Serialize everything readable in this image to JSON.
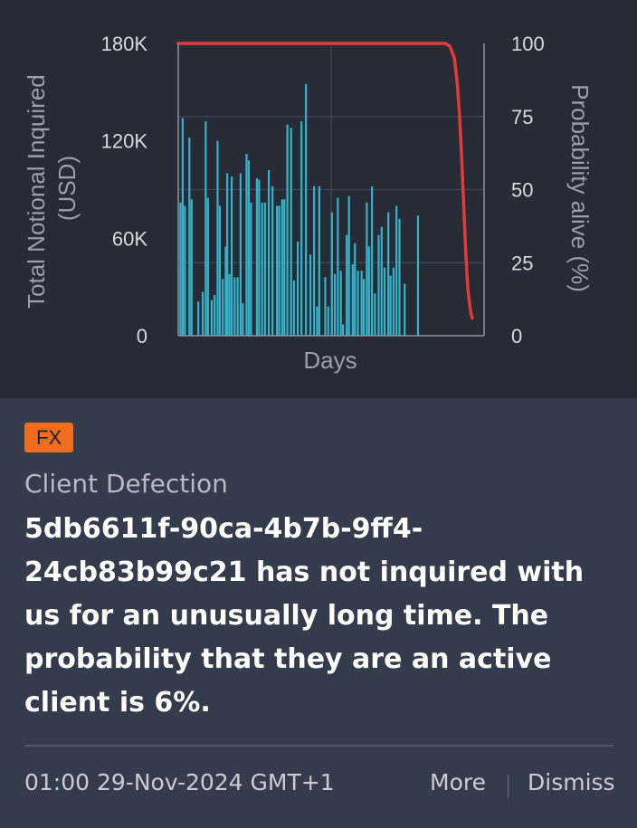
{
  "chart_data": {
    "type": "bar",
    "xlabel": "Days",
    "ylabel_left": "Total Notional Inquired (USD)",
    "ylabel_left_lines": [
      "Total Notional Inquired",
      "(USD)"
    ],
    "ylabel_right": "Probability alive (%)",
    "left_axis": {
      "ticks": [
        "180K",
        "120K",
        "60K",
        "0"
      ],
      "ylim": [
        0,
        180000
      ]
    },
    "right_axis": {
      "ticks": [
        "100",
        "75",
        "50",
        "25",
        "0"
      ],
      "ylim": [
        0,
        100
      ]
    },
    "grid": true,
    "bar_color": "#35b3c9",
    "line_color": "#e23a3a",
    "bar_series_name": "Total Notional Inquired (USD)",
    "bar_values": [
      {
        "day": 3,
        "value": 82000
      },
      {
        "day": 6,
        "value": 134000
      },
      {
        "day": 9,
        "value": 80000
      },
      {
        "day": 15,
        "value": 122000
      },
      {
        "day": 18,
        "value": 84000
      },
      {
        "day": 27,
        "value": 21000
      },
      {
        "day": 33,
        "value": 27000
      },
      {
        "day": 37,
        "value": 132000
      },
      {
        "day": 40,
        "value": 85000
      },
      {
        "day": 45,
        "value": 22000
      },
      {
        "day": 49,
        "value": 25000
      },
      {
        "day": 53,
        "value": 120000
      },
      {
        "day": 56,
        "value": 80000
      },
      {
        "day": 60,
        "value": 35000
      },
      {
        "day": 64,
        "value": 55000
      },
      {
        "day": 66,
        "value": 100000
      },
      {
        "day": 69,
        "value": 38000
      },
      {
        "day": 72,
        "value": 98000
      },
      {
        "day": 76,
        "value": 36000
      },
      {
        "day": 80,
        "value": 36000
      },
      {
        "day": 84,
        "value": 100000
      },
      {
        "day": 87,
        "value": 20000
      },
      {
        "day": 92,
        "value": 112000
      },
      {
        "day": 95,
        "value": 108000
      },
      {
        "day": 98,
        "value": 82000
      },
      {
        "day": 106,
        "value": 97000
      },
      {
        "day": 109,
        "value": 96000
      },
      {
        "day": 113,
        "value": 82000
      },
      {
        "day": 117,
        "value": 82000
      },
      {
        "day": 122,
        "value": 102000
      },
      {
        "day": 127,
        "value": 92000
      },
      {
        "day": 133,
        "value": 80000
      },
      {
        "day": 136,
        "value": 80000
      },
      {
        "day": 140,
        "value": 84000
      },
      {
        "day": 143,
        "value": 84000
      },
      {
        "day": 147,
        "value": 130000
      },
      {
        "day": 152,
        "value": 128000
      },
      {
        "day": 156,
        "value": 34000
      },
      {
        "day": 161,
        "value": 58000
      },
      {
        "day": 166,
        "value": 132000
      },
      {
        "day": 172,
        "value": 155000
      },
      {
        "day": 178,
        "value": 50000
      },
      {
        "day": 183,
        "value": 92000
      },
      {
        "day": 187,
        "value": 18000
      },
      {
        "day": 190,
        "value": 92000
      },
      {
        "day": 198,
        "value": 36000
      },
      {
        "day": 202,
        "value": 18000
      },
      {
        "day": 207,
        "value": 76000
      },
      {
        "day": 211,
        "value": 38000
      },
      {
        "day": 215,
        "value": 85000
      },
      {
        "day": 219,
        "value": 40000
      },
      {
        "day": 222,
        "value": 7000
      },
      {
        "day": 227,
        "value": 62000
      },
      {
        "day": 230,
        "value": 86000
      },
      {
        "day": 235,
        "value": 44000
      },
      {
        "day": 238,
        "value": 57000
      },
      {
        "day": 242,
        "value": 40000
      },
      {
        "day": 247,
        "value": 40000
      },
      {
        "day": 250,
        "value": 35000
      },
      {
        "day": 254,
        "value": 82000
      },
      {
        "day": 257,
        "value": 55000
      },
      {
        "day": 261,
        "value": 92000
      },
      {
        "day": 265,
        "value": 26000
      },
      {
        "day": 270,
        "value": 62000
      },
      {
        "day": 274,
        "value": 67000
      },
      {
        "day": 278,
        "value": 42000
      },
      {
        "day": 283,
        "value": 76000
      },
      {
        "day": 286,
        "value": 37000
      },
      {
        "day": 290,
        "value": 42000
      },
      {
        "day": 294,
        "value": 80000
      },
      {
        "day": 298,
        "value": 72000
      },
      {
        "day": 305,
        "value": 32000
      },
      {
        "day": 323,
        "value": 74000
      }
    ],
    "line_series_name": "Probability alive (%)",
    "line_points": [
      {
        "day": 0,
        "value": 100
      },
      {
        "day": 360,
        "value": 100
      },
      {
        "day": 366,
        "value": 99
      },
      {
        "day": 372,
        "value": 95
      },
      {
        "day": 376,
        "value": 86
      },
      {
        "day": 379,
        "value": 75
      },
      {
        "day": 382,
        "value": 60
      },
      {
        "day": 384,
        "value": 48
      },
      {
        "day": 387,
        "value": 30
      },
      {
        "day": 390,
        "value": 16
      },
      {
        "day": 394,
        "value": 8
      },
      {
        "day": 396,
        "value": 6
      }
    ],
    "x_range": [
      0,
      412
    ]
  },
  "badge": {
    "label": "FX",
    "color": "#ef6d1c"
  },
  "category": "Client Defection",
  "message": "5db6611f-90ca-4b7b-9ff4-24cb83b99c21 has not inquired with us for an unusually long time. The probability that they are an active client is 6%.",
  "footer": {
    "timestamp": "01:00 29-Nov-2024 GMT+1",
    "more_label": "More",
    "dismiss_label": "Dismiss"
  }
}
